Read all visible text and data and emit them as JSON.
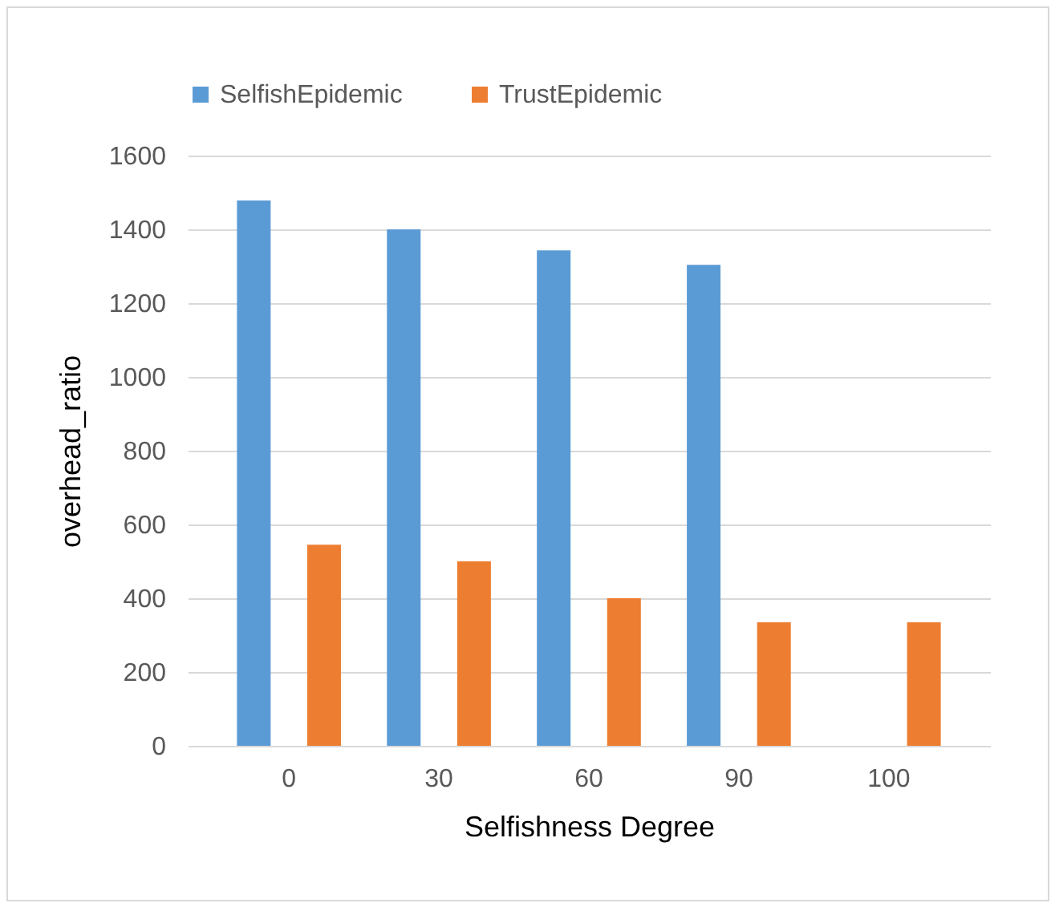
{
  "chart_data": {
    "type": "bar",
    "xlabel": "Selfishness Degree",
    "ylabel": "overhead_ratio",
    "categories": [
      "0",
      "30",
      "60",
      "90",
      "100"
    ],
    "series": [
      {
        "name": "SelfishEpidemic",
        "color": "#5b9bd5",
        "values": [
          1478,
          1400,
          1343,
          1304,
          null
        ]
      },
      {
        "name": "TrustEpidemic",
        "color": "#ed7d31",
        "values": [
          545,
          500,
          400,
          335,
          335
        ]
      }
    ],
    "ylim": [
      0,
      1600
    ],
    "yticks": [
      0,
      200,
      400,
      600,
      800,
      1000,
      1200,
      1400,
      1600
    ],
    "grid": "y",
    "legend": "top"
  }
}
